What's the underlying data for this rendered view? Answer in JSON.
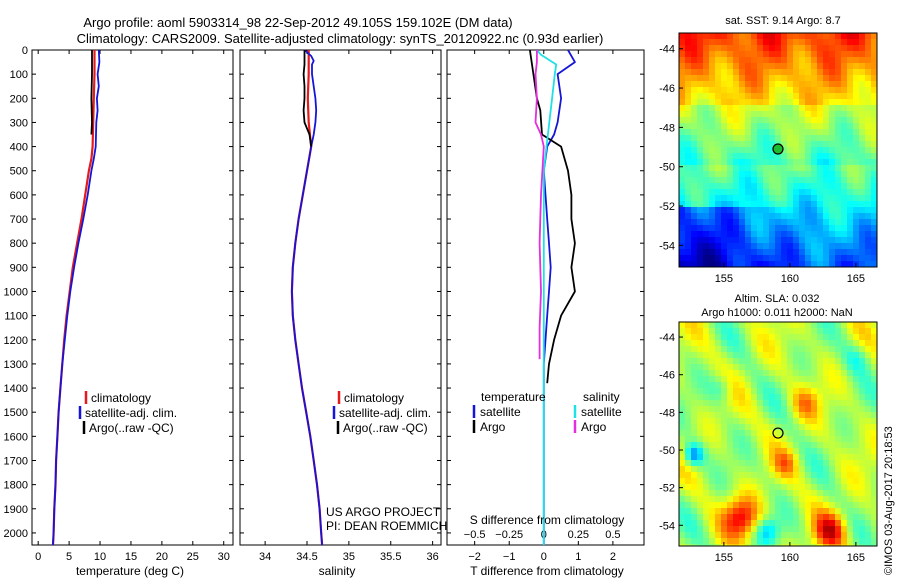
{
  "header": {
    "line1": "Argo profile: aoml 5903314_98 22-Sep-2012 49.105S 159.102E (DM data)",
    "line2": "Climatology: CARS2009. Satellite-adjusted climatology: synTS_20120922.nc (0.93d earlier)"
  },
  "colors": {
    "red": "#e41a1c",
    "blue": "#1515d8",
    "black": "#000000",
    "cyan": "#1fe0e6",
    "magenta": "#e52ee0"
  },
  "chart_data": [
    {
      "type": "line",
      "xlabel": "temperature (deg C)",
      "ylim": [
        0,
        2050
      ],
      "yreversed": true,
      "yticks": [
        0,
        100,
        200,
        300,
        400,
        500,
        600,
        700,
        800,
        900,
        1000,
        1100,
        1200,
        1300,
        1400,
        1500,
        1600,
        1700,
        1800,
        1900,
        2000
      ],
      "xlim": [
        -1,
        31.5
      ],
      "xticks": [
        0,
        5,
        10,
        15,
        20,
        25,
        30
      ],
      "legend": [
        "climatology",
        "satellite-adj. clim.",
        "Argo(..raw -QC)"
      ],
      "legend_placement": "lower-center",
      "series": [
        {
          "name": "climatology",
          "color": "red",
          "width": 2.2,
          "points": [
            [
              9.1,
              0
            ],
            [
              9.1,
              100
            ],
            [
              9.0,
              200
            ],
            [
              8.9,
              300
            ],
            [
              8.8,
              400
            ],
            [
              8.6,
              450
            ],
            [
              8.2,
              500
            ],
            [
              7.6,
              600
            ],
            [
              7.0,
              700
            ],
            [
              6.3,
              800
            ],
            [
              5.6,
              900
            ],
            [
              5.1,
              1000
            ],
            [
              4.6,
              1100
            ],
            [
              4.2,
              1200
            ],
            [
              3.9,
              1300
            ],
            [
              3.6,
              1400
            ],
            [
              3.3,
              1500
            ],
            [
              3.1,
              1600
            ],
            [
              2.9,
              1700
            ],
            [
              2.8,
              1800
            ],
            [
              2.6,
              1900
            ],
            [
              2.5,
              2000
            ],
            [
              2.4,
              2050
            ]
          ]
        },
        {
          "name": "satellite-adj. clim.",
          "color": "blue",
          "width": 1.8,
          "points": [
            [
              9.8,
              0
            ],
            [
              9.9,
              50
            ],
            [
              9.6,
              100
            ],
            [
              9.8,
              150
            ],
            [
              9.5,
              200
            ],
            [
              9.6,
              250
            ],
            [
              9.4,
              300
            ],
            [
              9.3,
              400
            ],
            [
              9.0,
              450
            ],
            [
              8.6,
              500
            ],
            [
              8.0,
              600
            ],
            [
              7.3,
              700
            ],
            [
              6.5,
              800
            ],
            [
              5.8,
              900
            ],
            [
              5.2,
              1000
            ],
            [
              4.7,
              1100
            ],
            [
              4.3,
              1200
            ],
            [
              3.9,
              1300
            ],
            [
              3.6,
              1400
            ],
            [
              3.3,
              1500
            ],
            [
              3.1,
              1600
            ],
            [
              2.9,
              1700
            ],
            [
              2.8,
              1800
            ],
            [
              2.6,
              1900
            ],
            [
              2.5,
              2000
            ],
            [
              2.4,
              2050
            ]
          ]
        },
        {
          "name": "Argo(..raw -QC)",
          "color": "black",
          "width": 1.8,
          "points": [
            [
              8.7,
              0
            ],
            [
              8.7,
              100
            ],
            [
              8.6,
              200
            ],
            [
              8.7,
              300
            ],
            [
              8.6,
              350
            ]
          ]
        }
      ]
    },
    {
      "type": "line",
      "xlabel": "salinity",
      "ylim": [
        0,
        2050
      ],
      "yreversed": true,
      "xlim": [
        33.7,
        36.1
      ],
      "xticks": [
        34,
        34.5,
        35,
        35.5,
        36
      ],
      "xticklabels": [
        "34",
        "34.5",
        "35",
        "35.5",
        "36"
      ],
      "legend": [
        "climatology",
        "satellite-adj. clim.",
        "Argo(..raw -QC)"
      ],
      "legend_placement": "lower-center",
      "annotation": [
        "US ARGO PROJECT",
        "PI: DEAN ROEMMICH"
      ],
      "series": [
        {
          "name": "climatology",
          "color": "red",
          "width": 2.2,
          "points": [
            [
              34.52,
              0
            ],
            [
              34.52,
              100
            ],
            [
              34.51,
              200
            ],
            [
              34.52,
              300
            ],
            [
              34.55,
              400
            ],
            [
              34.5,
              500
            ],
            [
              34.45,
              600
            ],
            [
              34.4,
              700
            ],
            [
              34.36,
              800
            ],
            [
              34.33,
              900
            ],
            [
              34.32,
              1000
            ],
            [
              34.33,
              1100
            ],
            [
              34.36,
              1200
            ],
            [
              34.4,
              1300
            ],
            [
              34.44,
              1400
            ],
            [
              34.49,
              1500
            ],
            [
              34.54,
              1600
            ],
            [
              34.58,
              1700
            ],
            [
              34.62,
              1800
            ],
            [
              34.65,
              1900
            ],
            [
              34.67,
              2000
            ],
            [
              34.68,
              2050
            ]
          ]
        },
        {
          "name": "satellite-adj. clim.",
          "color": "blue",
          "width": 1.8,
          "points": [
            [
              34.47,
              0
            ],
            [
              34.55,
              25
            ],
            [
              34.58,
              45
            ],
            [
              34.56,
              60
            ],
            [
              34.56,
              100
            ],
            [
              34.58,
              150
            ],
            [
              34.6,
              200
            ],
            [
              34.61,
              250
            ],
            [
              34.6,
              300
            ],
            [
              34.58,
              350
            ],
            [
              34.55,
              400
            ],
            [
              34.5,
              500
            ],
            [
              34.45,
              600
            ],
            [
              34.4,
              700
            ],
            [
              34.36,
              800
            ],
            [
              34.33,
              900
            ],
            [
              34.32,
              1000
            ],
            [
              34.33,
              1100
            ],
            [
              34.36,
              1200
            ],
            [
              34.4,
              1300
            ],
            [
              34.44,
              1400
            ],
            [
              34.49,
              1500
            ],
            [
              34.54,
              1600
            ],
            [
              34.58,
              1700
            ],
            [
              34.62,
              1800
            ],
            [
              34.65,
              1900
            ],
            [
              34.67,
              2000
            ],
            [
              34.68,
              2050
            ]
          ]
        },
        {
          "name": "Argo(..raw -QC)",
          "color": "black",
          "width": 1.8,
          "points": [
            [
              34.47,
              0
            ],
            [
              34.47,
              60
            ],
            [
              34.46,
              100
            ],
            [
              34.47,
              150
            ],
            [
              34.47,
              200
            ],
            [
              34.46,
              250
            ],
            [
              34.47,
              300
            ],
            [
              34.53,
              350
            ],
            [
              34.55,
              400
            ]
          ]
        }
      ]
    },
    {
      "type": "line",
      "xlabel": "T difference from climatology",
      "xlabel_top": "S difference from climatology",
      "ylim": [
        0,
        2050
      ],
      "yreversed": true,
      "xlim": [
        -2.8,
        2.9
      ],
      "xticks": [
        -2,
        -1,
        0,
        1,
        2
      ],
      "xticklabels": [
        "−2",
        "−1",
        "0",
        "1",
        "2"
      ],
      "sticks": [
        -0.5,
        -0.25,
        0,
        0.25,
        0.5
      ],
      "sticklabels": [
        "−0.5",
        "−0.25",
        "0",
        "0.25",
        "0.5"
      ],
      "slim": [
        -0.7,
        0.725
      ],
      "legend": [
        "temperature",
        "satellite",
        "Argo",
        "salinity",
        "satellite",
        "Argo"
      ],
      "legend_placement": "lower-center",
      "series": [
        {
          "name": "satellite",
          "group": "temperature",
          "color": "blue",
          "width": 1.8,
          "points": [
            [
              0.7,
              0
            ],
            [
              0.9,
              50
            ],
            [
              0.4,
              100
            ],
            [
              0.5,
              200
            ],
            [
              0.4,
              300
            ],
            [
              0.3,
              350
            ],
            [
              0.1,
              400
            ],
            [
              0.0,
              500
            ],
            [
              0.05,
              600
            ],
            [
              0.1,
              700
            ],
            [
              0.15,
              800
            ],
            [
              0.2,
              900
            ],
            [
              0.15,
              1000
            ],
            [
              0.1,
              1100
            ],
            [
              0.05,
              1200
            ],
            [
              0.0,
              1300
            ],
            [
              0.0,
              1400
            ],
            [
              0.0,
              1600
            ],
            [
              0.0,
              1800
            ],
            [
              0.0,
              2000
            ],
            [
              0.0,
              2050
            ]
          ]
        },
        {
          "name": "Argo",
          "group": "temperature",
          "color": "black",
          "width": 1.8,
          "points": [
            [
              -0.4,
              0
            ],
            [
              -0.3,
              100
            ],
            [
              -0.2,
              200
            ],
            [
              -0.1,
              250
            ],
            [
              -0.05,
              350
            ],
            [
              0.5,
              400
            ],
            [
              0.7,
              500
            ],
            [
              0.8,
              600
            ],
            [
              0.8,
              700
            ],
            [
              0.9,
              800
            ],
            [
              0.8,
              900
            ],
            [
              0.9,
              1000
            ],
            [
              0.5,
              1100
            ],
            [
              0.3,
              1200
            ],
            [
              0.15,
              1300
            ],
            [
              0.1,
              1380
            ]
          ]
        },
        {
          "name": "satellite",
          "group": "salinity",
          "color": "cyan",
          "width": 1.8,
          "points": [
            [
              -0.05,
              0
            ],
            [
              -0.02,
              20
            ],
            [
              0.09,
              60
            ],
            [
              0.08,
              100
            ],
            [
              0.06,
              200
            ],
            [
              0.04,
              300
            ],
            [
              0.02,
              400
            ],
            [
              0.0,
              500
            ],
            [
              0.0,
              700
            ],
            [
              0.0,
              900
            ],
            [
              0.0,
              1100
            ],
            [
              0.0,
              1300
            ],
            [
              0.0,
              1500
            ],
            [
              0.0,
              1700
            ],
            [
              0.0,
              1900
            ],
            [
              0.0,
              2050
            ]
          ]
        },
        {
          "name": "Argo",
          "group": "salinity",
          "color": "magenta",
          "width": 1.8,
          "points": [
            [
              -0.05,
              0
            ],
            [
              -0.05,
              50
            ],
            [
              -0.06,
              100
            ],
            [
              -0.05,
              200
            ],
            [
              -0.06,
              300
            ],
            [
              -0.02,
              350
            ],
            [
              0.0,
              400
            ],
            [
              -0.02,
              600
            ],
            [
              -0.03,
              800
            ],
            [
              -0.02,
              1000
            ],
            [
              -0.03,
              1150
            ],
            [
              -0.03,
              1280
            ]
          ]
        }
      ]
    },
    {
      "type": "heatmap",
      "title": "sat. SST: 9.14  Argo: 8.7",
      "xticks": [
        155,
        160,
        165
      ],
      "yticks": [
        -44,
        -46,
        -48,
        -50,
        -52,
        -54
      ],
      "xlim": [
        151.6,
        166.6
      ],
      "ylim": [
        -55.1,
        -43.2
      ],
      "marker": {
        "lon": 159.1,
        "lat": -49.1,
        "style": "circle-green"
      }
    },
    {
      "type": "heatmap",
      "title": "Altim. SLA: 0.032",
      "subtitle": "Argo h1000: 0.011 h2000: NaN",
      "xticks": [
        155,
        160,
        165
      ],
      "yticks": [
        -44,
        -46,
        -48,
        -50,
        -52,
        -54
      ],
      "xlim": [
        151.6,
        166.6
      ],
      "ylim": [
        -55.1,
        -43.2
      ],
      "marker": {
        "lon": 159.1,
        "lat": -49.1,
        "style": "circle-open"
      }
    }
  ],
  "watermark": "©IMOS 03-Aug-2017 20:18:53"
}
